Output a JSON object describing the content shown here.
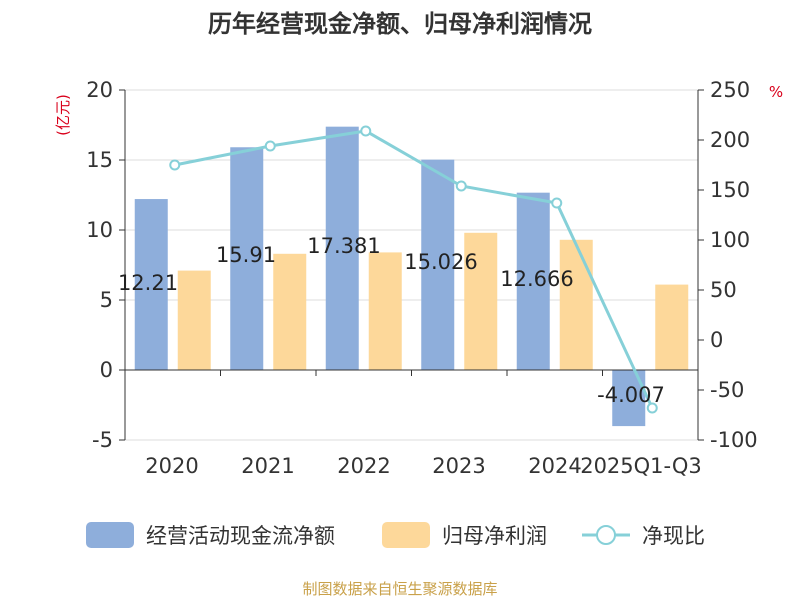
{
  "chart_data": {
    "type": "bar",
    "title": "历年经营现金净额、归母净利润情况",
    "categories": [
      "2020",
      "2021",
      "2022",
      "2023",
      "2024",
      "2025Q1-Q3"
    ],
    "series": [
      {
        "name": "经营活动现金流净额",
        "kind": "bar",
        "axis": "left",
        "color": "#8eaedb",
        "values": [
          12.21,
          15.91,
          17.381,
          15.026,
          12.666,
          -4.007
        ],
        "labels": [
          "12.21",
          "15.91",
          "17.381",
          "15.026",
          "12.666",
          "-4.007"
        ]
      },
      {
        "name": "归母净利润",
        "kind": "bar",
        "axis": "left",
        "color": "#fdd89a",
        "values": [
          7.1,
          8.3,
          8.4,
          9.8,
          9.3,
          6.1
        ]
      },
      {
        "name": "净现比",
        "kind": "line",
        "axis": "right",
        "color": "#86d0d8",
        "values": [
          175,
          194,
          209,
          154,
          137,
          -68
        ]
      }
    ],
    "y_left": {
      "unit_label": "(亿元)",
      "min": -5,
      "max": 20,
      "ticks": [
        -5,
        0,
        5,
        10,
        15,
        20
      ]
    },
    "y_right": {
      "unit_label": "%",
      "min": -100,
      "max": 250,
      "ticks": [
        -100,
        -50,
        0,
        50,
        100,
        150,
        200,
        250
      ]
    },
    "grid": true,
    "legend_position": "bottom",
    "source": "制图数据来自恒生聚源数据库"
  }
}
